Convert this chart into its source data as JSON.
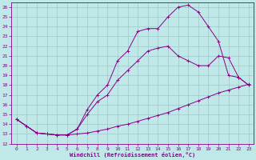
{
  "xlabel": "Windchill (Refroidissement éolien,°C)",
  "bg_color": "#c0e8e8",
  "line_color": "#880088",
  "grid_color": "#a0c8c8",
  "xlim": [
    -0.5,
    23.5
  ],
  "ylim": [
    12,
    26.5
  ],
  "xticks": [
    0,
    1,
    2,
    3,
    4,
    5,
    6,
    7,
    8,
    9,
    10,
    11,
    12,
    13,
    14,
    15,
    16,
    17,
    18,
    19,
    20,
    21,
    22,
    23
  ],
  "yticks": [
    12,
    13,
    14,
    15,
    16,
    17,
    18,
    19,
    20,
    21,
    22,
    23,
    24,
    25,
    26
  ],
  "line1_x": [
    0,
    1,
    2,
    3,
    4,
    5,
    6,
    7,
    8,
    9,
    10,
    11,
    12,
    13,
    14,
    15,
    16,
    17,
    18,
    19,
    20,
    21,
    22,
    23
  ],
  "line1_y": [
    14.5,
    13.8,
    13.1,
    13.0,
    12.9,
    12.9,
    13.0,
    13.1,
    13.3,
    13.5,
    13.8,
    14.0,
    14.3,
    14.6,
    14.9,
    15.2,
    15.6,
    16.0,
    16.4,
    16.8,
    17.2,
    17.5,
    17.8,
    18.1
  ],
  "line2_x": [
    0,
    1,
    2,
    3,
    4,
    5,
    6,
    7,
    8,
    9,
    10,
    11,
    12,
    13,
    14,
    15,
    16,
    17,
    18,
    19,
    20,
    21,
    22,
    23
  ],
  "line2_y": [
    14.5,
    13.8,
    13.1,
    13.0,
    12.9,
    12.9,
    13.5,
    15.0,
    16.3,
    17.0,
    18.5,
    19.5,
    20.5,
    21.5,
    21.8,
    22.0,
    21.0,
    20.5,
    20.0,
    20.0,
    21.0,
    20.8,
    18.8,
    18.0
  ],
  "line3_x": [
    0,
    2,
    3,
    4,
    5,
    6,
    7,
    8,
    9,
    10,
    11,
    12,
    13,
    14,
    15,
    16,
    17,
    18,
    19,
    20,
    21,
    22,
    23
  ],
  "line3_y": [
    14.5,
    13.1,
    13.0,
    12.9,
    12.9,
    13.5,
    15.5,
    17.0,
    18.0,
    20.5,
    21.5,
    23.5,
    23.8,
    23.8,
    25.0,
    26.0,
    26.2,
    25.5,
    24.0,
    22.5,
    19.0,
    18.8,
    18.0
  ]
}
